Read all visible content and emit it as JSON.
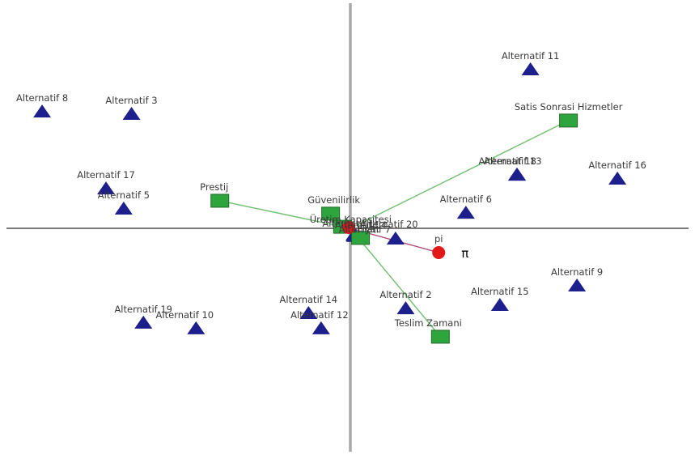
{
  "chart_data": {
    "type": "scatter",
    "title": "",
    "xlabel": "",
    "ylabel": "",
    "xlim": [
      -1.0,
      1.0
    ],
    "ylim": [
      -1.0,
      1.0
    ],
    "grid": false,
    "axes": "crossing at origin",
    "colors": {
      "alternative": "#1c1f8c",
      "criterion_fill": "#2ea43c",
      "criterion_stroke": "#1d6b26",
      "criterion_line": "#6fbf6f",
      "pi_point": "#e01818",
      "pi_line": "#b04a7a",
      "axis": "#a8a8a8"
    },
    "alternatives": [
      {
        "label": "Alternatif 1",
        "x": 0.013,
        "y": -0.033
      },
      {
        "label": "Alternatif 2",
        "x": 0.163,
        "y": -0.367
      },
      {
        "label": "Alternatif 3",
        "x": -0.644,
        "y": 0.522
      },
      {
        "label": "Alternatif 4",
        "x": 0.012,
        "y": -0.03
      },
      {
        "label": "Alternatif 5",
        "x": -0.667,
        "y": 0.089
      },
      {
        "label": "Alternatif 6",
        "x": 0.34,
        "y": 0.07
      },
      {
        "label": "Alternatif 7",
        "x": 0.014,
        "y": -0.036
      },
      {
        "label": "Alternatif 8",
        "x": -0.907,
        "y": 0.533
      },
      {
        "label": "Alternatif 9",
        "x": 0.667,
        "y": -0.263
      },
      {
        "label": "Alternatif 10",
        "x": -0.454,
        "y": -0.459
      },
      {
        "label": "Alternatif 11",
        "x": 0.53,
        "y": 0.726
      },
      {
        "label": "Alternatif 12",
        "x": -0.086,
        "y": -0.459
      },
      {
        "label": "Alternatif 13",
        "x": 0.49,
        "y": 0.244
      },
      {
        "label": "Alternatif 14",
        "x": -0.123,
        "y": -0.389
      },
      {
        "label": "Alternatif 15",
        "x": 0.44,
        "y": -0.352
      },
      {
        "label": "Alternatif 16",
        "x": 0.786,
        "y": 0.226
      },
      {
        "label": "Alternatif 17",
        "x": -0.719,
        "y": 0.181
      },
      {
        "label": "Alternatif 18",
        "x": 0.491,
        "y": 0.244
      },
      {
        "label": "Alternatif 19",
        "x": -0.609,
        "y": -0.433
      },
      {
        "label": "Alternatif 20",
        "x": 0.133,
        "y": -0.048
      }
    ],
    "criteria": [
      {
        "label": "Satis Sonrasi Hizmetler",
        "x": 0.642,
        "y": 0.493
      },
      {
        "label": "Prestij",
        "x": -0.384,
        "y": 0.126
      },
      {
        "label": "Güvenilirlik",
        "x": -0.058,
        "y": 0.067
      },
      {
        "label": "Üretim Kapasitesi",
        "x": -0.023,
        "y": 0.007
      },
      {
        "label": "Fiyat",
        "x": 0.03,
        "y": -0.044
      },
      {
        "label": "Teslim Zamani",
        "x": 0.265,
        "y": -0.496
      }
    ],
    "pi_point": {
      "label": "pi",
      "symbol": "π",
      "x": 0.26,
      "y": -0.111
    }
  }
}
